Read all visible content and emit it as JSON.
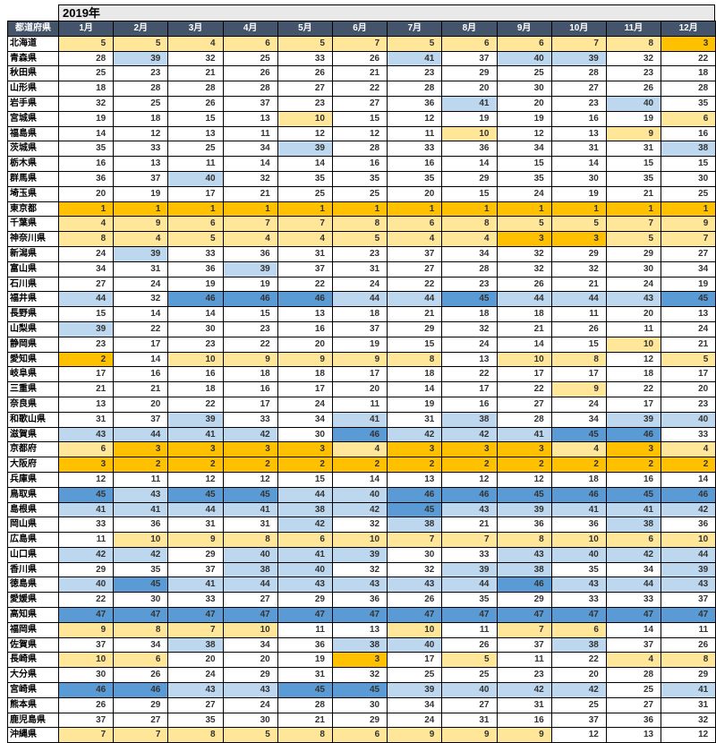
{
  "chart_data": {
    "type": "heatmap",
    "title": "2019年",
    "row_header_label": "都道府県",
    "columns": [
      "1月",
      "2月",
      "3月",
      "4月",
      "5月",
      "6月",
      "7月",
      "8月",
      "9月",
      "10月",
      "11月",
      "12月"
    ],
    "value_range": [
      1,
      47
    ],
    "legend_position": "none",
    "color_scale": [
      {
        "max": 3,
        "color": "#FFC000",
        "meaning": "rank 1-3"
      },
      {
        "max": 10,
        "color": "#FFE699",
        "meaning": "rank 4-10"
      },
      {
        "max": 37,
        "color": "#FFFFFF",
        "meaning": "rank 11-37"
      },
      {
        "max": 44,
        "color": "#BDD7EE",
        "meaning": "rank 38-44"
      },
      {
        "max": 47,
        "color": "#5B9BD5",
        "meaning": "rank 45-47"
      }
    ],
    "header_bg": "#44546A",
    "header_text_color": "#FFFFFF",
    "title_bg": "#E9E9E9",
    "rows": [
      {
        "name": "北海道",
        "values": [
          5,
          5,
          4,
          6,
          5,
          7,
          5,
          6,
          6,
          7,
          8,
          3
        ]
      },
      {
        "name": "青森県",
        "values": [
          28,
          39,
          32,
          25,
          33,
          26,
          41,
          37,
          40,
          39,
          32,
          22
        ]
      },
      {
        "name": "秋田県",
        "values": [
          25,
          23,
          21,
          26,
          26,
          21,
          23,
          29,
          25,
          28,
          23,
          18
        ]
      },
      {
        "name": "山形県",
        "values": [
          18,
          28,
          28,
          28,
          27,
          22,
          28,
          20,
          30,
          27,
          26,
          28
        ]
      },
      {
        "name": "岩手県",
        "values": [
          32,
          25,
          26,
          37,
          23,
          27,
          36,
          41,
          20,
          23,
          40,
          35
        ]
      },
      {
        "name": "宮城県",
        "values": [
          19,
          18,
          15,
          13,
          10,
          15,
          12,
          19,
          19,
          16,
          19,
          6
        ]
      },
      {
        "name": "福島県",
        "values": [
          14,
          12,
          13,
          11,
          12,
          12,
          11,
          10,
          12,
          13,
          9,
          16
        ]
      },
      {
        "name": "茨城県",
        "values": [
          35,
          33,
          25,
          34,
          39,
          28,
          33,
          36,
          34,
          31,
          31,
          38
        ]
      },
      {
        "name": "栃木県",
        "values": [
          16,
          13,
          11,
          14,
          14,
          16,
          16,
          14,
          15,
          14,
          15,
          15
        ]
      },
      {
        "name": "群馬県",
        "values": [
          36,
          37,
          40,
          32,
          35,
          35,
          35,
          29,
          35,
          30,
          35,
          30
        ]
      },
      {
        "name": "埼玉県",
        "values": [
          20,
          19,
          17,
          21,
          25,
          25,
          20,
          15,
          24,
          19,
          21,
          25
        ]
      },
      {
        "name": "東京都",
        "values": [
          1,
          1,
          1,
          1,
          1,
          1,
          1,
          1,
          1,
          1,
          1,
          1
        ]
      },
      {
        "name": "千葉県",
        "values": [
          4,
          9,
          6,
          7,
          7,
          8,
          6,
          8,
          5,
          5,
          7,
          9
        ]
      },
      {
        "name": "神奈川県",
        "values": [
          8,
          4,
          5,
          4,
          4,
          5,
          4,
          4,
          3,
          3,
          5,
          7
        ]
      },
      {
        "name": "新潟県",
        "values": [
          24,
          39,
          33,
          36,
          31,
          23,
          37,
          34,
          32,
          29,
          29,
          27
        ]
      },
      {
        "name": "富山県",
        "values": [
          34,
          31,
          36,
          39,
          37,
          31,
          27,
          28,
          32,
          32,
          30,
          34
        ]
      },
      {
        "name": "石川県",
        "values": [
          27,
          24,
          19,
          19,
          22,
          24,
          22,
          23,
          26,
          21,
          24,
          19
        ]
      },
      {
        "name": "福井県",
        "values": [
          44,
          32,
          46,
          46,
          46,
          44,
          44,
          45,
          44,
          44,
          43,
          45
        ]
      },
      {
        "name": "長野県",
        "values": [
          15,
          14,
          14,
          15,
          13,
          18,
          21,
          18,
          18,
          11,
          20,
          13
        ]
      },
      {
        "name": "山梨県",
        "values": [
          39,
          22,
          30,
          23,
          16,
          37,
          29,
          32,
          21,
          26,
          11,
          24
        ]
      },
      {
        "name": "静岡県",
        "values": [
          23,
          17,
          23,
          22,
          20,
          19,
          15,
          24,
          14,
          15,
          10,
          21
        ]
      },
      {
        "name": "愛知県",
        "values": [
          2,
          14,
          10,
          9,
          9,
          9,
          8,
          13,
          10,
          8,
          12,
          5
        ]
      },
      {
        "name": "岐阜県",
        "values": [
          17,
          16,
          16,
          18,
          18,
          17,
          18,
          22,
          17,
          17,
          18,
          17
        ]
      },
      {
        "name": "三重県",
        "values": [
          21,
          21,
          18,
          16,
          17,
          20,
          14,
          17,
          22,
          9,
          22,
          20
        ]
      },
      {
        "name": "奈良県",
        "values": [
          13,
          20,
          22,
          17,
          24,
          11,
          19,
          16,
          27,
          24,
          17,
          23
        ]
      },
      {
        "name": "和歌山県",
        "values": [
          31,
          37,
          39,
          33,
          34,
          41,
          31,
          38,
          28,
          34,
          39,
          40
        ]
      },
      {
        "name": "滋賀県",
        "values": [
          43,
          44,
          41,
          42,
          30,
          46,
          42,
          42,
          41,
          45,
          46,
          33
        ]
      },
      {
        "name": "京都府",
        "values": [
          6,
          3,
          3,
          3,
          3,
          4,
          3,
          3,
          3,
          4,
          3,
          4
        ]
      },
      {
        "name": "大阪府",
        "values": [
          3,
          2,
          2,
          2,
          2,
          2,
          2,
          2,
          2,
          2,
          2,
          2
        ]
      },
      {
        "name": "兵庫県",
        "values": [
          12,
          11,
          12,
          12,
          15,
          14,
          13,
          12,
          12,
          18,
          16,
          14
        ]
      },
      {
        "name": "鳥取県",
        "values": [
          45,
          43,
          45,
          45,
          44,
          40,
          46,
          46,
          45,
          46,
          45,
          46
        ]
      },
      {
        "name": "島根県",
        "values": [
          41,
          41,
          44,
          41,
          38,
          42,
          45,
          43,
          39,
          41,
          41,
          42
        ]
      },
      {
        "name": "岡山県",
        "values": [
          33,
          36,
          31,
          31,
          42,
          32,
          38,
          21,
          36,
          36,
          38,
          36
        ]
      },
      {
        "name": "広島県",
        "values": [
          11,
          10,
          9,
          8,
          6,
          10,
          7,
          7,
          8,
          10,
          6,
          10
        ]
      },
      {
        "name": "山口県",
        "values": [
          42,
          42,
          29,
          40,
          41,
          39,
          30,
          33,
          43,
          40,
          42,
          44
        ]
      },
      {
        "name": "香川県",
        "values": [
          29,
          35,
          37,
          38,
          40,
          32,
          32,
          39,
          38,
          35,
          34,
          39
        ]
      },
      {
        "name": "徳島県",
        "values": [
          40,
          45,
          41,
          44,
          43,
          43,
          43,
          44,
          46,
          43,
          44,
          43
        ]
      },
      {
        "name": "愛媛県",
        "values": [
          22,
          30,
          33,
          27,
          29,
          36,
          26,
          35,
          29,
          33,
          33,
          37
        ]
      },
      {
        "name": "高知県",
        "values": [
          47,
          47,
          47,
          47,
          47,
          47,
          47,
          47,
          47,
          47,
          47,
          47
        ]
      },
      {
        "name": "福岡県",
        "values": [
          9,
          8,
          7,
          10,
          11,
          13,
          10,
          11,
          7,
          6,
          14,
          11
        ]
      },
      {
        "name": "佐賀県",
        "values": [
          37,
          34,
          38,
          34,
          36,
          38,
          40,
          26,
          37,
          38,
          37,
          26
        ]
      },
      {
        "name": "長崎県",
        "values": [
          10,
          6,
          20,
          20,
          19,
          3,
          17,
          5,
          11,
          22,
          4,
          8
        ]
      },
      {
        "name": "大分県",
        "values": [
          30,
          26,
          24,
          29,
          31,
          32,
          25,
          25,
          23,
          20,
          28,
          29
        ]
      },
      {
        "name": "宮崎県",
        "values": [
          46,
          46,
          43,
          43,
          45,
          45,
          39,
          40,
          42,
          42,
          25,
          41
        ]
      },
      {
        "name": "熊本県",
        "values": [
          26,
          29,
          27,
          24,
          28,
          30,
          34,
          27,
          31,
          25,
          27,
          31
        ]
      },
      {
        "name": "鹿児島県",
        "values": [
          37,
          27,
          35,
          30,
          21,
          29,
          24,
          31,
          16,
          37,
          36,
          32
        ]
      },
      {
        "name": "沖縄県",
        "values": [
          7,
          7,
          8,
          5,
          8,
          6,
          9,
          9,
          9,
          12,
          13,
          12
        ]
      }
    ]
  }
}
